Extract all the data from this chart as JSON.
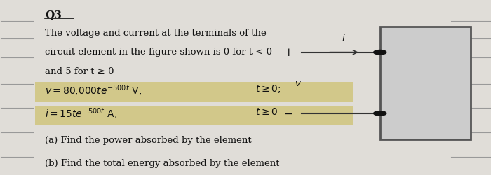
{
  "bg_color": "#e0ddd8",
  "title": "Q3",
  "line1": "The voltage and current at the terminals of the",
  "line2": "circuit element in the figure shown is 0 for t < 0",
  "line3": "and 5 for t ≥ 0",
  "part_a": "(a) Find the power absorbed by the element",
  "part_b": "(b) Find the total energy absorbed by the element",
  "text_color": "#111111",
  "highlight_color": "#c8b84a",
  "box_fill": "#cccccc",
  "box_edge": "#555555",
  "wire_color": "#333333",
  "font_size": 9.5,
  "title_font_size": 11
}
